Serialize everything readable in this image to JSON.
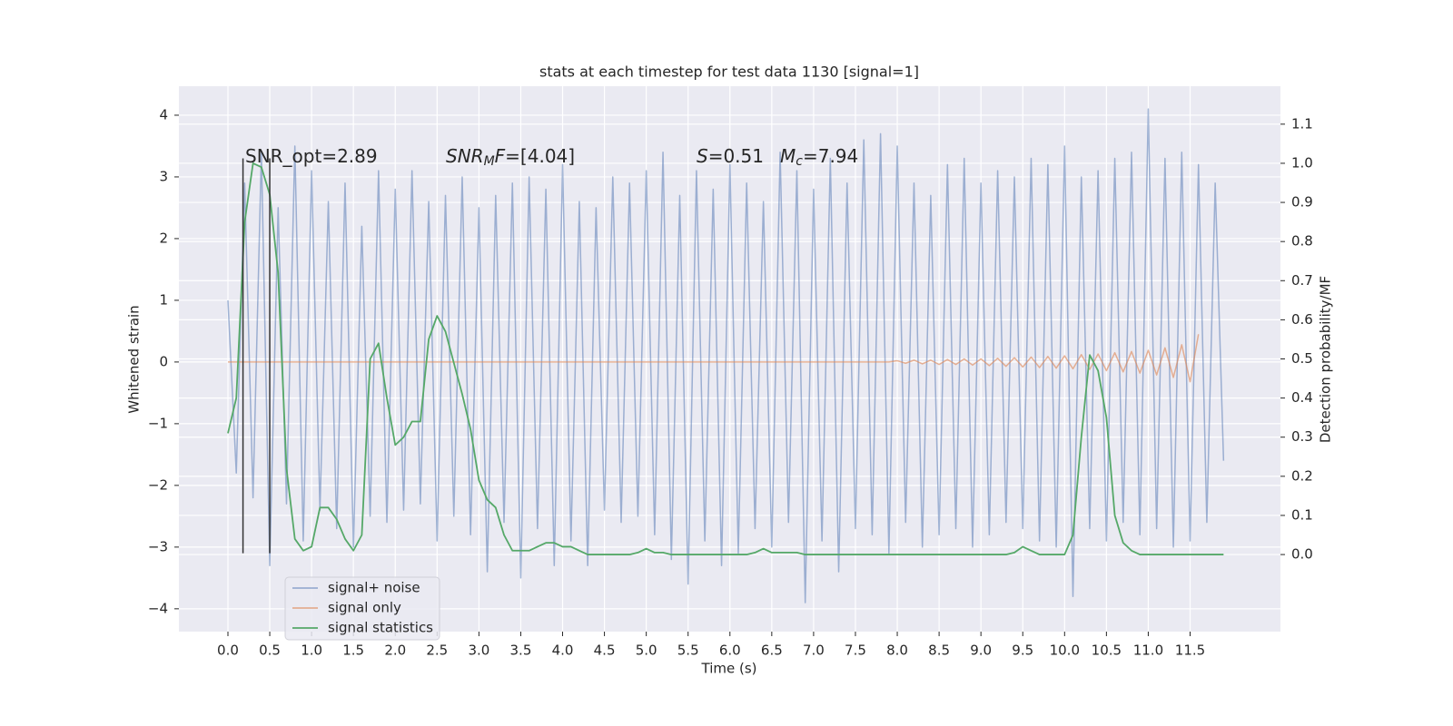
{
  "chart_data": {
    "type": "line",
    "title": "stats at each timestep for test data 1130 [signal=1]",
    "xlabel": "Time (s)",
    "ylabel": "Whitened strain",
    "y2label": "Detection probability/MF",
    "grid": true,
    "legend": "lower left",
    "xlim": [
      -0.586,
      12.58
    ],
    "ylim": [
      -4.37,
      4.47
    ],
    "y2lim": [
      -0.197,
      1.197
    ],
    "xticks": [
      {
        "value": 0,
        "label": "0.0"
      },
      0.5,
      {
        "value": 1,
        "label": "1.0"
      },
      1.5,
      {
        "value": 2,
        "label": "2.0"
      },
      2.5,
      {
        "value": 3,
        "label": "3.0"
      },
      3.5,
      {
        "value": 4,
        "label": "4.0"
      },
      4.5,
      {
        "value": 5,
        "label": "5.0"
      },
      5.5,
      {
        "value": 6,
        "label": "6.0"
      },
      6.5,
      {
        "value": 7,
        "label": "7.0"
      },
      7.5,
      {
        "value": 8,
        "label": "8.0"
      },
      8.5,
      {
        "value": 9,
        "label": "9.0"
      },
      9.5,
      {
        "value": 10,
        "label": "10.0"
      },
      10.5,
      {
        "value": 11,
        "label": "11.0"
      },
      11.5
    ],
    "yticks": [
      {
        "value": -4,
        "label": "−4"
      },
      {
        "value": -3,
        "label": "−3"
      },
      {
        "value": -2,
        "label": "−2"
      },
      {
        "value": -1,
        "label": "−1"
      },
      0,
      1,
      2,
      3,
      4
    ],
    "y2ticks": [
      {
        "value": 0,
        "label": "0.0"
      },
      0.1,
      0.2,
      0.3,
      0.4,
      0.5,
      0.6,
      0.7,
      0.8,
      0.9,
      {
        "value": 1,
        "label": "1.0"
      },
      1.1
    ],
    "x": [
      0.0,
      0.1,
      0.2,
      0.3,
      0.4,
      0.5,
      0.6,
      0.7,
      0.8,
      0.9,
      1.0,
      1.1,
      1.2,
      1.3,
      1.4,
      1.5,
      1.6,
      1.7,
      1.8,
      1.9,
      2.0,
      2.1,
      2.2,
      2.3,
      2.4,
      2.5,
      2.6,
      2.7,
      2.8,
      2.9,
      3.0,
      3.1,
      3.2,
      3.3,
      3.4,
      3.5,
      3.6,
      3.7,
      3.8,
      3.9,
      4.0,
      4.1,
      4.2,
      4.3,
      4.4,
      4.5,
      4.6,
      4.7,
      4.8,
      4.9,
      5.0,
      5.1,
      5.2,
      5.3,
      5.4,
      5.5,
      5.6,
      5.7,
      5.8,
      5.9,
      6.0,
      6.1,
      6.2,
      6.3,
      6.4,
      6.5,
      6.6,
      6.7,
      6.8,
      6.9,
      7.0,
      7.1,
      7.2,
      7.3,
      7.4,
      7.5,
      7.6,
      7.7,
      7.8,
      7.9,
      8.0,
      8.1,
      8.2,
      8.3,
      8.4,
      8.5,
      8.6,
      8.7,
      8.8,
      8.9,
      9.0,
      9.1,
      9.2,
      9.3,
      9.4,
      9.5,
      9.6,
      9.7,
      9.8,
      9.9,
      10.0,
      10.1,
      10.2,
      10.3,
      10.4,
      10.5,
      10.6,
      10.7,
      10.8,
      10.9,
      11.0,
      11.1,
      11.2,
      11.3,
      11.4,
      11.5,
      11.6,
      11.7,
      11.8,
      11.9
    ],
    "series": [
      {
        "name": "signal+ noise",
        "color": "#4c72b0",
        "opacity": 0.5,
        "axis": "y",
        "values": [
          1.0,
          -1.8,
          2.9,
          -2.2,
          3.4,
          -3.3,
          2.5,
          -2.3,
          3.5,
          -2.9,
          3.1,
          -2.4,
          2.6,
          -2.7,
          2.9,
          -3.0,
          2.2,
          -2.5,
          3.1,
          -2.6,
          2.8,
          -2.4,
          3.1,
          -2.3,
          2.6,
          -2.9,
          2.7,
          -2.5,
          3.0,
          -2.8,
          2.5,
          -3.4,
          2.7,
          -2.6,
          2.9,
          -3.5,
          3.0,
          -2.7,
          2.8,
          -3.3,
          3.2,
          -2.9,
          2.6,
          -3.3,
          2.5,
          -2.4,
          3.0,
          -2.6,
          2.9,
          -2.5,
          3.1,
          -2.8,
          3.4,
          -3.2,
          2.7,
          -3.6,
          3.1,
          -2.9,
          2.8,
          -3.3,
          3.2,
          -3.1,
          2.9,
          -2.7,
          2.6,
          -3.0,
          3.4,
          -2.6,
          3.1,
          -3.9,
          2.8,
          -2.9,
          3.3,
          -3.4,
          2.9,
          -2.7,
          3.6,
          -2.8,
          3.7,
          -3.1,
          3.5,
          -2.6,
          2.9,
          -3.0,
          2.7,
          -2.8,
          3.2,
          -2.7,
          3.3,
          -3.0,
          2.9,
          -2.8,
          3.1,
          -2.6,
          3.0,
          -2.7,
          3.3,
          -2.9,
          3.2,
          -3.0,
          3.5,
          -3.8,
          3.0,
          -2.7,
          3.1,
          -2.9,
          3.3,
          -2.6,
          3.4,
          -2.8,
          4.1,
          -2.7,
          3.3,
          -3.0,
          3.4,
          -2.9,
          3.2,
          -2.6,
          2.9,
          -1.6
        ]
      },
      {
        "name": "signal only",
        "color": "#dd8452",
        "opacity": 0.6,
        "axis": "y",
        "values": [
          0,
          0,
          0,
          0,
          0,
          0,
          0,
          0,
          0,
          0,
          0,
          0,
          0,
          0,
          0,
          0,
          0,
          0,
          0,
          0,
          0,
          0,
          0,
          0,
          0,
          0,
          0,
          0,
          0,
          0,
          0,
          0,
          0,
          0,
          0,
          0,
          0,
          0,
          0,
          0,
          0,
          0,
          0,
          0,
          0,
          0,
          0,
          0,
          0,
          0,
          0,
          0,
          0,
          0,
          0,
          0,
          0,
          0,
          0,
          0,
          0,
          0,
          0,
          0,
          0,
          0,
          0,
          0,
          0,
          0,
          0,
          0,
          0,
          0,
          0,
          0,
          0,
          0,
          0,
          0,
          0.02,
          -0.02,
          0.03,
          -0.03,
          0.03,
          -0.04,
          0.04,
          -0.04,
          0.05,
          -0.05,
          0.05,
          -0.06,
          0.06,
          -0.07,
          0.07,
          -0.08,
          0.08,
          -0.09,
          0.09,
          -0.1,
          0.1,
          -0.11,
          0.12,
          -0.12,
          0.13,
          -0.14,
          0.15,
          -0.16,
          0.17,
          -0.18,
          0.19,
          -0.21,
          0.23,
          -0.25,
          0.28,
          -0.32,
          0.45,
          null,
          null,
          null
        ]
      },
      {
        "name": "signal statistics",
        "color": "#55a868",
        "opacity": 1,
        "axis": "y2",
        "values": [
          0.31,
          0.4,
          0.85,
          1.0,
          0.99,
          0.92,
          0.72,
          0.22,
          0.04,
          0.01,
          0.02,
          0.12,
          0.12,
          0.09,
          0.04,
          0.01,
          0.05,
          0.5,
          0.54,
          0.4,
          0.28,
          0.3,
          0.34,
          0.34,
          0.55,
          0.61,
          0.57,
          0.49,
          0.41,
          0.32,
          0.19,
          0.14,
          0.12,
          0.05,
          0.01,
          0.01,
          0.01,
          0.02,
          0.03,
          0.03,
          0.02,
          0.02,
          0.01,
          0,
          0,
          0,
          0,
          0,
          0,
          0.005,
          0.015,
          0.005,
          0.005,
          0,
          0,
          0,
          0,
          0,
          0,
          0,
          0,
          0,
          0,
          0.005,
          0.015,
          0.005,
          0.005,
          0.005,
          0.005,
          0,
          0,
          0,
          0,
          0,
          0,
          0,
          0,
          0,
          0,
          0,
          0,
          0,
          0,
          0,
          0,
          0,
          0,
          0,
          0,
          0,
          0,
          0,
          0,
          0,
          0.005,
          0.02,
          0.01,
          0,
          0,
          0,
          0,
          0.05,
          0.3,
          0.51,
          0.47,
          0.35,
          0.1,
          0.03,
          0.01,
          0,
          0,
          0,
          0,
          0,
          0,
          0,
          0,
          0,
          0,
          0
        ]
      }
    ],
    "vlines": {
      "x": [
        0.18,
        0.5
      ],
      "ymin": -3.1,
      "ymax": 3.3,
      "color": "#333333"
    },
    "annotations": [
      {
        "parts": [
          {
            "text": "SNR_opt=2.89"
          }
        ]
      },
      {
        "parts": [
          {
            "text": "SNR",
            "italic": true
          },
          {
            "text": "M",
            "italic": true,
            "sub": true
          },
          {
            "text": "F",
            "italic": true
          },
          {
            "text": "=[4.04]"
          }
        ]
      },
      {
        "parts": [
          {
            "text": "S",
            "italic": true
          },
          {
            "text": "=0.51"
          }
        ]
      },
      {
        "parts": [
          {
            "text": "M",
            "italic": true
          },
          {
            "text": "c",
            "italic": true,
            "sub": true
          },
          {
            "text": "=7.94"
          }
        ]
      }
    ]
  }
}
